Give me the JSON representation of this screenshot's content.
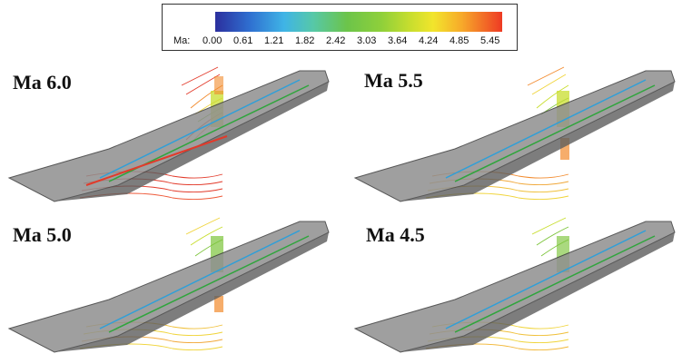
{
  "legend": {
    "title": "Ma:",
    "ticks": [
      "0.00",
      "0.61",
      "1.21",
      "1.82",
      "2.42",
      "3.03",
      "3.64",
      "4.24",
      "4.85",
      "5.45"
    ]
  },
  "panels": [
    {
      "label": "Ma 6.0"
    },
    {
      "label": "Ma 5.5"
    },
    {
      "label": "Ma 5.0"
    },
    {
      "label": "Ma 4.5"
    }
  ],
  "colors": {
    "body": "#8f8f8f",
    "body_dark": "#5c5c5c",
    "inner_edge": "#2f9fd8",
    "inner_edge2": "#2fa53c",
    "contour_hot": "#e23a2a",
    "contour_warm": "#f28a2c",
    "contour_yellow": "#f0d43a",
    "contour_green": "#7cc43a"
  }
}
